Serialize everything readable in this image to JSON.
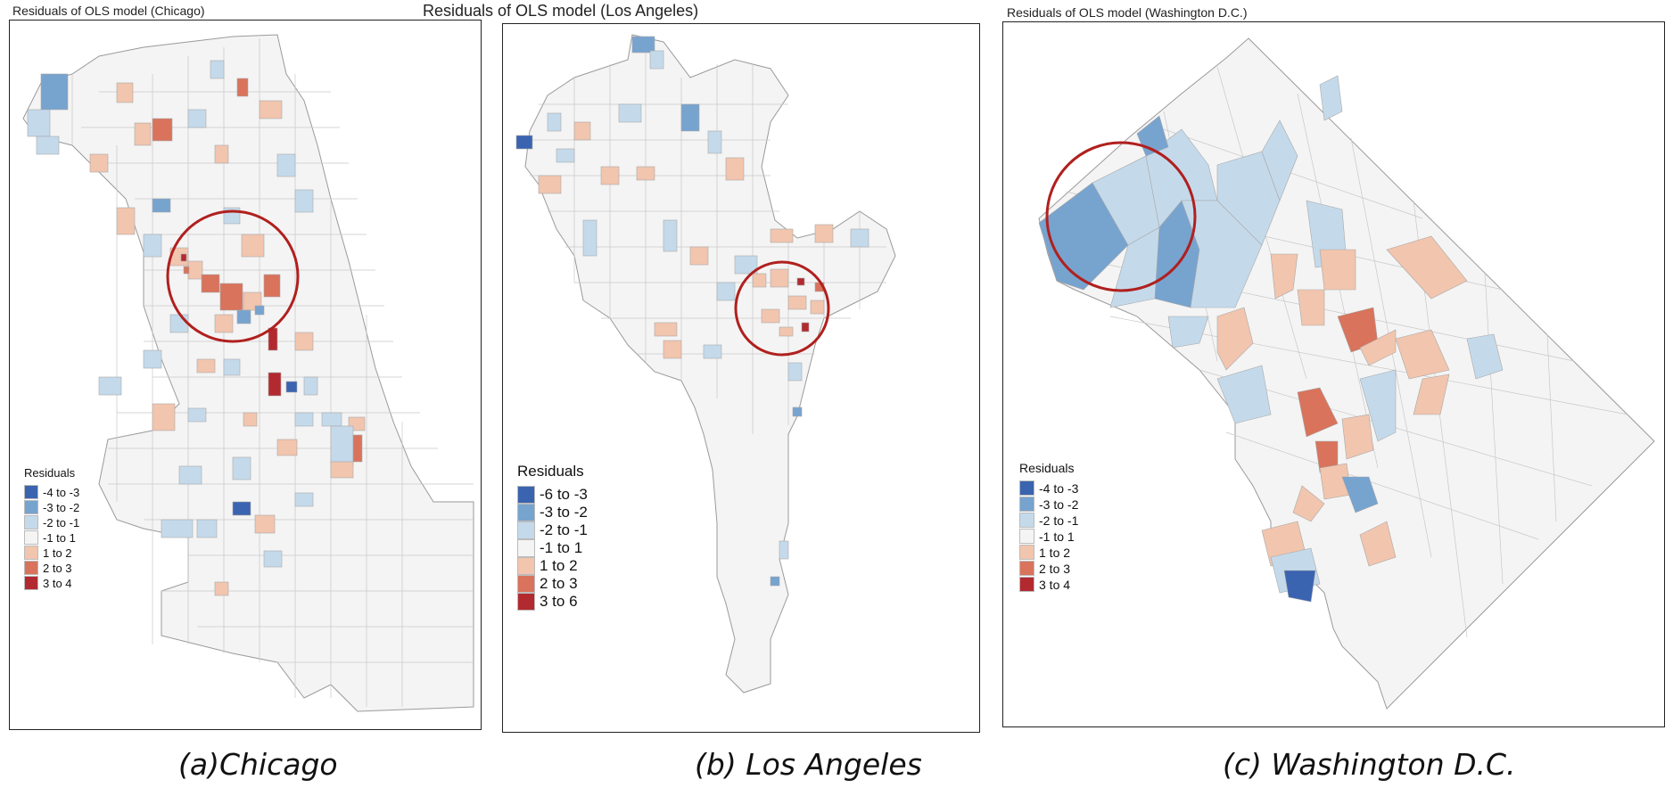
{
  "panels": {
    "chicago": {
      "title": "Residuals of OLS model (Chicago)",
      "caption": "(a)Chicago",
      "legend_title": "Residuals",
      "legend": [
        {
          "label": "-4 to -3",
          "color": "#3a64b0"
        },
        {
          "label": "-3 to -2",
          "color": "#77a3cf"
        },
        {
          "label": "-2 to -1",
          "color": "#c4daeb"
        },
        {
          "label": "-1 to 1",
          "color": "#f4f4f4"
        },
        {
          "label": "1 to 2",
          "color": "#f2c5ae"
        },
        {
          "label": "2 to 3",
          "color": "#d9735c"
        },
        {
          "label": "3 to 4",
          "color": "#b22a30"
        }
      ]
    },
    "los_angeles": {
      "title": "Residuals of OLS model (Los Angeles)",
      "caption": "(b) Los Angeles",
      "legend_title": "Residuals",
      "legend": [
        {
          "label": "-6 to -3",
          "color": "#3a64b0"
        },
        {
          "label": "-3 to -2",
          "color": "#77a3cf"
        },
        {
          "label": "-2 to -1",
          "color": "#c4daeb"
        },
        {
          "label": "-1 to 1",
          "color": "#f4f4f4"
        },
        {
          "label": "1 to 2",
          "color": "#f2c5ae"
        },
        {
          "label": "2 to 3",
          "color": "#d9735c"
        },
        {
          "label": "3 to 6",
          "color": "#b22a30"
        }
      ]
    },
    "washington": {
      "title": "Residuals of OLS model (Washington D.C.)",
      "caption": "(c) Washington D.C.",
      "legend_title": "Residuals",
      "legend": [
        {
          "label": "-4 to -3",
          "color": "#3a64b0"
        },
        {
          "label": "-3 to -2",
          "color": "#77a3cf"
        },
        {
          "label": "-2 to -1",
          "color": "#c4daeb"
        },
        {
          "label": "-1 to 1",
          "color": "#f4f4f4"
        },
        {
          "label": "1 to 2",
          "color": "#f2c5ae"
        },
        {
          "label": "2 to 3",
          "color": "#d9735c"
        },
        {
          "label": "3 to 4",
          "color": "#b22a30"
        }
      ]
    }
  },
  "highlight_circle_color": "#b0201e"
}
